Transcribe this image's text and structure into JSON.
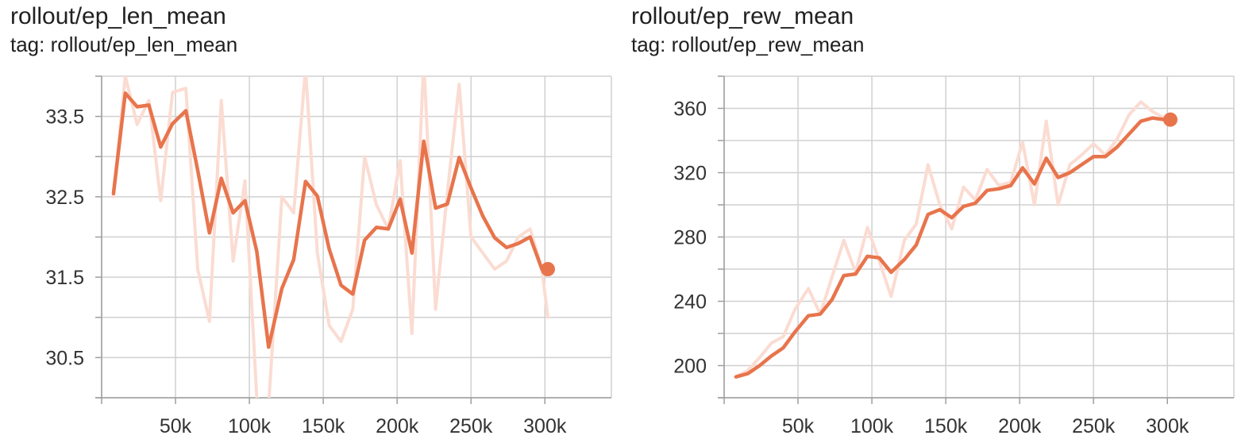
{
  "chart_data": [
    {
      "type": "line",
      "title": "rollout/ep_len_mean",
      "subtitle": "tag: rollout/ep_len_mean",
      "xlim": [
        0,
        345000
      ],
      "ylim": [
        30.0,
        34.0
      ],
      "x_ticks": [
        50000,
        100000,
        150000,
        200000,
        250000,
        300000
      ],
      "x_tick_labels": [
        "50k",
        "100k",
        "150k",
        "200k",
        "250k",
        "300k"
      ],
      "y_ticks": [
        30.5,
        31.5,
        32.5,
        33.5
      ],
      "y_tick_labels": [
        "30.5",
        "31.5",
        "32.5",
        "33.5"
      ],
      "grid": true,
      "colors": {
        "smoothed": "#e8744c",
        "raw": "#fbdcd2",
        "grid": "#d0d0d0"
      },
      "series": [
        {
          "role": "raw",
          "x": [
            8000,
            16000,
            24000,
            32000,
            40000,
            48000,
            57000,
            65000,
            73000,
            81000,
            89000,
            97000,
            105000,
            113000,
            122000,
            130000,
            138000,
            146000,
            154000,
            162000,
            170000,
            178000,
            186000,
            194000,
            202000,
            210000,
            218000,
            226000,
            234000,
            242000,
            250000,
            258000,
            266000,
            274000,
            282000,
            290000,
            298000,
            302000
          ],
          "values": [
            32.5,
            34.0,
            33.4,
            33.7,
            32.45,
            33.8,
            33.85,
            31.6,
            30.95,
            33.7,
            31.7,
            32.7,
            30.0,
            29.9,
            32.5,
            32.3,
            34.1,
            31.8,
            30.9,
            30.7,
            31.1,
            33.0,
            32.4,
            32.1,
            32.95,
            30.8,
            34.2,
            31.1,
            32.55,
            33.9,
            32.0,
            31.8,
            31.6,
            31.7,
            32.0,
            32.1,
            31.6,
            31.0
          ]
        },
        {
          "role": "smoothed",
          "x": [
            8000,
            16000,
            24000,
            32000,
            40000,
            48000,
            57000,
            65000,
            73000,
            81000,
            89000,
            97000,
            105000,
            113000,
            122000,
            130000,
            138000,
            146000,
            154000,
            162000,
            170000,
            178000,
            186000,
            194000,
            202000,
            210000,
            218000,
            226000,
            234000,
            242000,
            250000,
            258000,
            266000,
            274000,
            282000,
            290000,
            298000,
            302000
          ],
          "values": [
            32.54,
            33.79,
            33.62,
            33.64,
            33.12,
            33.41,
            33.57,
            32.83,
            32.05,
            32.73,
            32.3,
            32.45,
            31.82,
            30.63,
            31.36,
            31.72,
            32.69,
            32.51,
            31.85,
            31.4,
            31.29,
            31.96,
            32.12,
            32.1,
            32.47,
            31.8,
            33.19,
            32.36,
            32.41,
            32.99,
            32.61,
            32.26,
            31.99,
            31.87,
            31.92,
            32.0,
            31.6,
            31.6
          ]
        }
      ]
    },
    {
      "type": "line",
      "title": "rollout/ep_rew_mean",
      "subtitle": "tag: rollout/ep_rew_mean",
      "xlim": [
        0,
        345000
      ],
      "ylim": [
        180,
        380
      ],
      "x_ticks": [
        50000,
        100000,
        150000,
        200000,
        250000,
        300000
      ],
      "x_tick_labels": [
        "50k",
        "100k",
        "150k",
        "200k",
        "250k",
        "300k"
      ],
      "y_ticks": [
        200,
        240,
        280,
        320,
        360
      ],
      "y_tick_labels": [
        "200",
        "240",
        "280",
        "320",
        "360"
      ],
      "grid": true,
      "colors": {
        "smoothed": "#e8744c",
        "raw": "#fbdcd2",
        "grid": "#d0d0d0"
      },
      "series": [
        {
          "role": "raw",
          "x": [
            8000,
            16000,
            24000,
            32000,
            40000,
            48000,
            57000,
            65000,
            73000,
            81000,
            89000,
            97000,
            105000,
            113000,
            122000,
            130000,
            138000,
            146000,
            154000,
            162000,
            170000,
            178000,
            186000,
            194000,
            202000,
            210000,
            218000,
            226000,
            234000,
            242000,
            250000,
            258000,
            266000,
            274000,
            282000,
            290000,
            298000,
            302000
          ],
          "values": [
            193,
            197,
            205,
            214,
            218,
            235,
            248,
            232,
            255,
            278,
            258,
            286,
            265,
            243,
            278,
            288,
            325,
            300,
            285,
            311,
            303,
            322,
            312,
            314,
            339,
            300,
            352,
            300,
            325,
            331,
            338,
            331,
            341,
            356,
            364,
            358,
            354,
            353
          ]
        },
        {
          "role": "smoothed",
          "x": [
            8000,
            16000,
            24000,
            32000,
            40000,
            48000,
            57000,
            65000,
            73000,
            81000,
            89000,
            97000,
            105000,
            113000,
            122000,
            130000,
            138000,
            146000,
            154000,
            162000,
            170000,
            178000,
            186000,
            194000,
            202000,
            210000,
            218000,
            226000,
            234000,
            242000,
            250000,
            258000,
            266000,
            274000,
            282000,
            290000,
            298000,
            302000
          ],
          "values": [
            193,
            195,
            200,
            206,
            211,
            221,
            231,
            232,
            241,
            256,
            257,
            268,
            267,
            258,
            266,
            275,
            294,
            297,
            292,
            299,
            301,
            309,
            310,
            312,
            323,
            313,
            329,
            317,
            320,
            325,
            330,
            330,
            336,
            344,
            352,
            354,
            353,
            353
          ]
        }
      ]
    }
  ]
}
